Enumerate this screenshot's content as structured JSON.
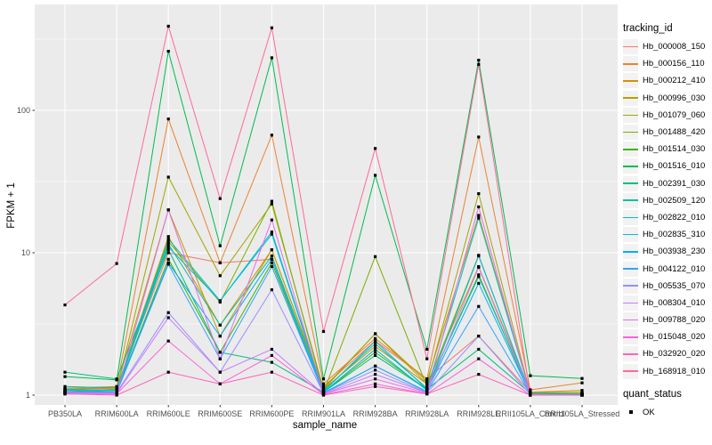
{
  "chart_data": {
    "type": "line",
    "title": "",
    "xlabel": "sample_name",
    "ylabel": "FPKM + 1",
    "y_scale": "log10",
    "y_ticks": [
      1,
      10,
      100
    ],
    "y_minor_ticks": [
      3.162,
      31.62,
      316.2
    ],
    "ylim": [
      0.85,
      550
    ],
    "grid": true,
    "panel_background": "#EBEBEB",
    "gridline_color": "#FFFFFF",
    "marker": "black-square",
    "legend_position": "right",
    "categories": [
      "PB350LA",
      "RRIM600LA",
      "RRIM600LE",
      "RRIM600SE",
      "RRIM600PE",
      "RRIM901LA",
      "RRIM928BA",
      "RRIM928LA",
      "RRIM928LE",
      "RRII105LA_Control",
      "RRII105LA_Stressed"
    ],
    "series": [
      {
        "name": "Hb_000008_150",
        "color": "#F8766D",
        "values": [
          1.1,
          1.12,
          10.0,
          8.5,
          9.0,
          1.15,
          2.4,
          1.3,
          2.6,
          1.05,
          1.02
        ]
      },
      {
        "name": "Hb_000156_110",
        "color": "#EA8331",
        "values": [
          1.12,
          1.15,
          87,
          8.5,
          67,
          1.2,
          2.5,
          1.3,
          65,
          1.09,
          1.22
        ]
      },
      {
        "name": "Hb_000212_410",
        "color": "#D89000",
        "values": [
          1.08,
          1.1,
          13,
          3.1,
          10.5,
          1.1,
          2.2,
          1.2,
          8.0,
          1.05,
          1.08
        ]
      },
      {
        "name": "Hb_000996_030",
        "color": "#C09B00",
        "values": [
          1.1,
          1.14,
          20,
          2.6,
          10.5,
          1.12,
          2.7,
          1.25,
          18.3,
          1.04,
          1.05
        ]
      },
      {
        "name": "Hb_001079_060",
        "color": "#A3A500",
        "values": [
          1.05,
          1.1,
          34,
          6.9,
          22,
          1.1,
          2.7,
          1.2,
          26,
          1.02,
          1.03
        ]
      },
      {
        "name": "Hb_001488_420",
        "color": "#7CAE00",
        "values": [
          1.05,
          1.06,
          12,
          4.5,
          23,
          1.05,
          9.4,
          1.15,
          9.6,
          1.02,
          1.02
        ]
      },
      {
        "name": "Hb_001514_030",
        "color": "#39B600",
        "values": [
          1.04,
          1.05,
          9.0,
          2.0,
          8.5,
          1.05,
          2.0,
          1.1,
          7.0,
          1.01,
          1.02
        ]
      },
      {
        "name": "Hb_001516_010",
        "color": "#00BB4E",
        "values": [
          1.35,
          1.28,
          260,
          11.2,
          234,
          1.3,
          35,
          2.1,
          225,
          1.37,
          1.31
        ]
      },
      {
        "name": "Hb_002391_030",
        "color": "#00BF7D",
        "values": [
          1.45,
          1.3,
          10.5,
          2.0,
          1.7,
          1.05,
          1.9,
          1.1,
          2.1,
          1.03,
          1.02
        ]
      },
      {
        "name": "Hb_002509_120",
        "color": "#00C1A3",
        "values": [
          1.15,
          1.12,
          11.5,
          3.1,
          9.5,
          1.08,
          2.3,
          1.12,
          6.8,
          1.03,
          1.02
        ]
      },
      {
        "name": "Hb_002822_010",
        "color": "#00BFC4",
        "values": [
          1.1,
          1.08,
          12.5,
          4.6,
          14,
          1.06,
          2.4,
          1.1,
          17.5,
          1.02,
          1.02
        ]
      },
      {
        "name": "Hb_002835_310",
        "color": "#00BAE0",
        "values": [
          1.08,
          1.06,
          11.0,
          4.6,
          13.5,
          1.05,
          2.1,
          1.08,
          9.5,
          1.02,
          1.01
        ]
      },
      {
        "name": "Hb_003938_230",
        "color": "#00B0F6",
        "values": [
          1.06,
          1.05,
          8.5,
          2.6,
          9.0,
          1.04,
          1.6,
          1.06,
          6.1,
          1.01,
          1.01
        ]
      },
      {
        "name": "Hb_004122_010",
        "color": "#35A2FF",
        "values": [
          1.05,
          1.04,
          8.3,
          1.8,
          8.0,
          1.03,
          1.6,
          1.05,
          4.2,
          1.01,
          1.01
        ]
      },
      {
        "name": "Hb_005535_070",
        "color": "#9590FF",
        "values": [
          1.04,
          1.04,
          3.8,
          1.45,
          5.5,
          1.03,
          1.5,
          1.04,
          2.6,
          1.01,
          1.0
        ]
      },
      {
        "name": "Hb_008304_010",
        "color": "#C77CFF",
        "values": [
          1.04,
          1.03,
          3.5,
          1.45,
          2.1,
          1.02,
          1.4,
          1.04,
          7.9,
          1.01,
          1.0
        ]
      },
      {
        "name": "Hb_009788_020",
        "color": "#E76BF3",
        "values": [
          1.03,
          1.02,
          20,
          1.8,
          17,
          1.02,
          1.3,
          1.03,
          21,
          1.0,
          1.0
        ]
      },
      {
        "name": "Hb_015048_020",
        "color": "#FA62DB",
        "values": [
          1.02,
          1.02,
          2.4,
          1.2,
          1.9,
          1.01,
          1.2,
          1.02,
          1.8,
          1.0,
          1.0
        ]
      },
      {
        "name": "Hb_032920_020",
        "color": "#FF62BC",
        "values": [
          1.02,
          1.0,
          1.45,
          1.2,
          1.45,
          1.0,
          1.15,
          1.02,
          1.4,
          1.0,
          1.0
        ]
      },
      {
        "name": "Hb_168918_010",
        "color": "#FF6A98",
        "values": [
          4.3,
          8.4,
          390,
          24,
          380,
          2.8,
          54,
          1.8,
          210,
          1.0,
          1.0
        ]
      }
    ],
    "legend": {
      "tracking_id_title": "tracking_id",
      "quant_status_title": "quant_status",
      "quant_status_items": [
        {
          "label": "OK",
          "marker": "black-square"
        }
      ]
    }
  }
}
